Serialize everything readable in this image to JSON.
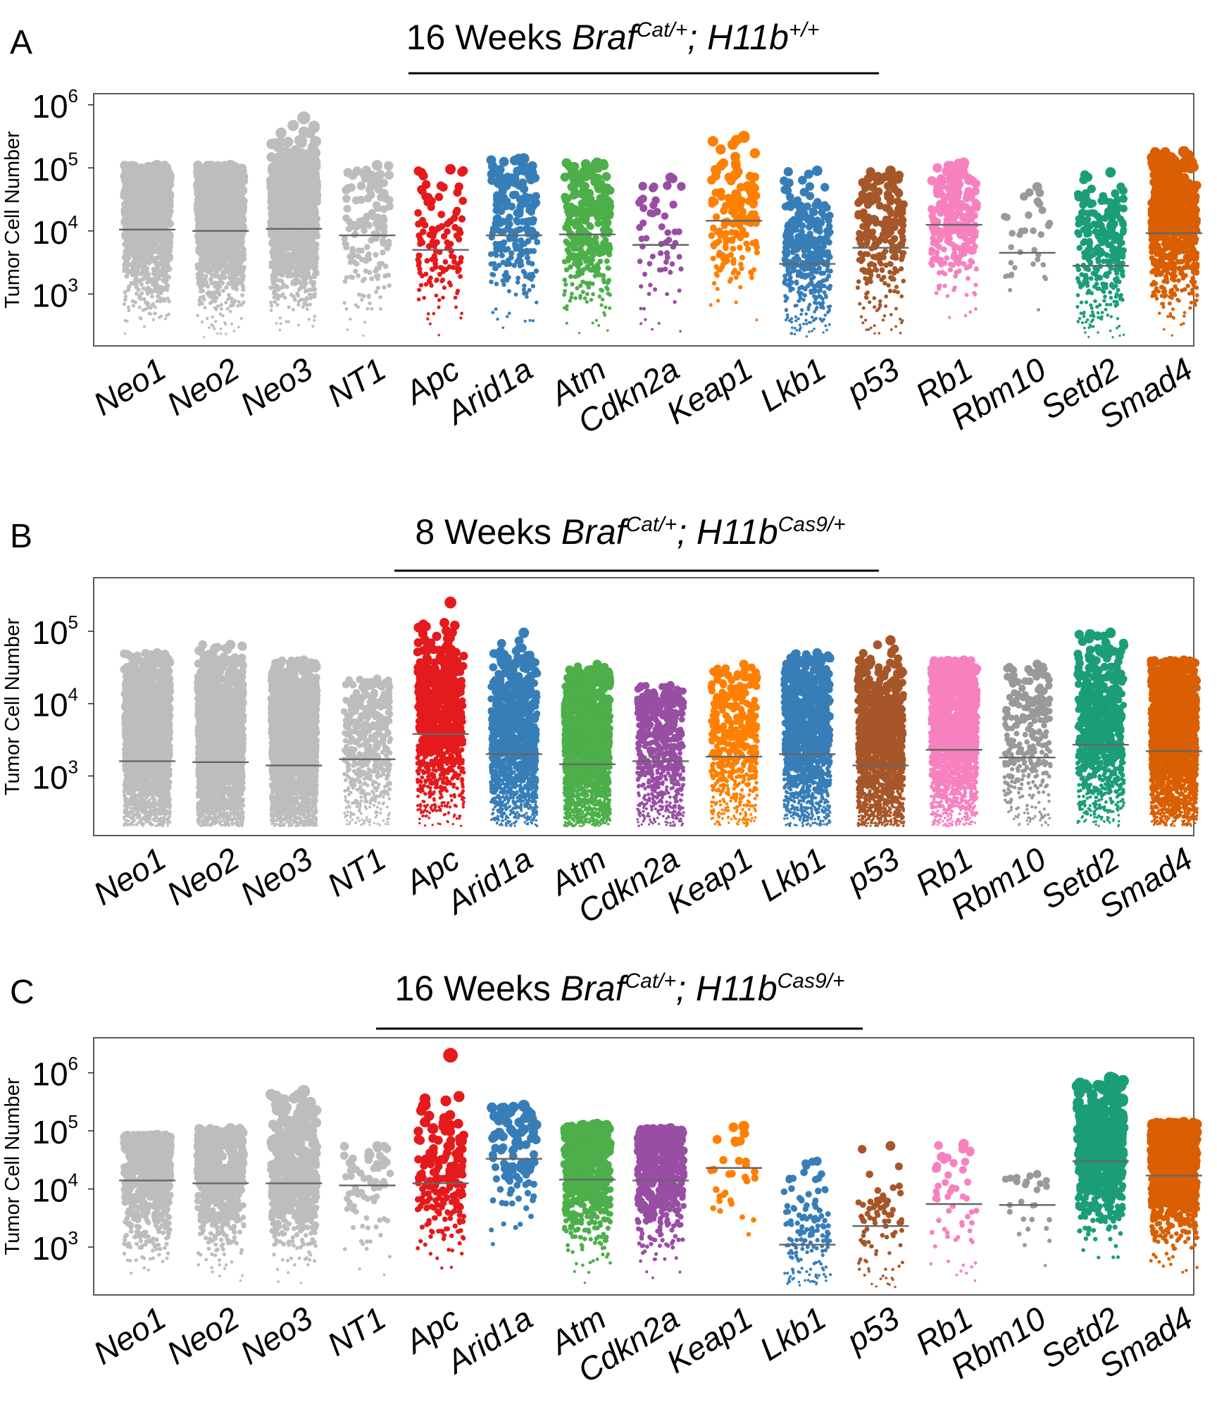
{
  "figure": {
    "panels": [
      {
        "letter": "A",
        "title_pre": "16 Weeks ",
        "title_braf": "Braf",
        "title_braf_sup": "Cat/+",
        "title_sep": "; ",
        "title_h11b": "H11b",
        "title_h11b_sup": "+/+"
      },
      {
        "letter": "B",
        "title_pre": "8 Weeks ",
        "title_braf": "Braf",
        "title_braf_sup": "Cat/+",
        "title_sep": "; ",
        "title_h11b": "H11b",
        "title_h11b_sup": "Cas9/+"
      },
      {
        "letter": "C",
        "title_pre": "16 Weeks ",
        "title_braf": "Braf",
        "title_braf_sup": "Cat/+",
        "title_sep": "; ",
        "title_h11b": "H11b",
        "title_h11b_sup": "Cas9/+"
      }
    ]
  },
  "chart_data": [
    {
      "type": "scatter",
      "title": "16 Weeks Braf Cat/+; H11b +/+",
      "ylabel": "Tumor Cell Number",
      "yscale": "log",
      "ylim": [
        150,
        1500000
      ],
      "yticks": [
        {
          "value": 1000,
          "base": "10",
          "exp": "3"
        },
        {
          "value": 10000,
          "base": "10",
          "exp": "4"
        },
        {
          "value": 100000,
          "base": "10",
          "exp": "5"
        },
        {
          "value": 1000000,
          "base": "10",
          "exp": "6"
        }
      ],
      "categories": [
        "Neo1",
        "Neo2",
        "Neo3",
        "NT1",
        "Apc",
        "Arid1a",
        "Atm",
        "Cdkn2a",
        "Keap1",
        "Lkb1",
        "p53",
        "Rb1",
        "Rbm10",
        "Setd2",
        "Smad4"
      ],
      "colors": [
        "#bdbdbd",
        "#bdbdbd",
        "#bdbdbd",
        "#bdbdbd",
        "#e41a1c",
        "#377eb8",
        "#4daf4a",
        "#984ea3",
        "#ff7f00",
        "#377eb8",
        "#a65628",
        "#f781bf",
        "#999999",
        "#1b9e77",
        "#d95f02"
      ],
      "medians": [
        10500,
        10000,
        10800,
        8500,
        5000,
        8500,
        8800,
        6000,
        14500,
        3000,
        5400,
        12500,
        4500,
        2800,
        9200
      ],
      "n_points": [
        900,
        1100,
        1200,
        160,
        130,
        210,
        330,
        60,
        160,
        420,
        260,
        260,
        35,
        320,
        620
      ],
      "max_values": [
        110000,
        110000,
        620000,
        110000,
        95000,
        140000,
        120000,
        70000,
        310000,
        90000,
        90000,
        120000,
        50000,
        85000,
        180000
      ],
      "grid": false,
      "legend": "none"
    },
    {
      "type": "scatter",
      "title": "8 Weeks Braf Cat/+; H11b Cas9/+",
      "ylabel": "Tumor Cell Number",
      "yscale": "log",
      "ylim": [
        150,
        550000
      ],
      "yticks": [
        {
          "value": 1000,
          "base": "10",
          "exp": "3"
        },
        {
          "value": 10000,
          "base": "10",
          "exp": "4"
        },
        {
          "value": 100000,
          "base": "10",
          "exp": "5"
        }
      ],
      "categories": [
        "Neo1",
        "Neo2",
        "Neo3",
        "NT1",
        "Apc",
        "Arid1a",
        "Atm",
        "Cdkn2a",
        "Keap1",
        "Lkb1",
        "p53",
        "Rb1",
        "Rbm10",
        "Setd2",
        "Smad4"
      ],
      "colors": [
        "#bdbdbd",
        "#bdbdbd",
        "#bdbdbd",
        "#bdbdbd",
        "#e41a1c",
        "#377eb8",
        "#4daf4a",
        "#984ea3",
        "#ff7f00",
        "#377eb8",
        "#a65628",
        "#f781bf",
        "#999999",
        "#1b9e77",
        "#d95f02"
      ],
      "medians": [
        1600,
        1550,
        1400,
        1700,
        3800,
        2000,
        1450,
        1600,
        1850,
        2000,
        1400,
        2300,
        1800,
        2700,
        2200
      ],
      "n_points": [
        2600,
        3000,
        2900,
        520,
        900,
        1300,
        2000,
        700,
        560,
        1300,
        1500,
        1500,
        320,
        850,
        2200
      ],
      "max_values": [
        50000,
        65000,
        40000,
        22000,
        250000,
        95000,
        35000,
        18000,
        35000,
        50000,
        75000,
        40000,
        35000,
        95000,
        40000
      ],
      "grid": false,
      "legend": "none"
    },
    {
      "type": "scatter",
      "title": "16 Weeks Braf Cat/+; H11b Cas9/+",
      "ylabel": "Tumor Cell Number",
      "yscale": "log",
      "ylim": [
        150,
        4000000
      ],
      "yticks": [
        {
          "value": 1000,
          "base": "10",
          "exp": "3"
        },
        {
          "value": 10000,
          "base": "10",
          "exp": "4"
        },
        {
          "value": 100000,
          "base": "10",
          "exp": "5"
        },
        {
          "value": 1000000,
          "base": "10",
          "exp": "6"
        }
      ],
      "categories": [
        "Neo1",
        "Neo2",
        "Neo3",
        "NT1",
        "Apc",
        "Arid1a",
        "Atm",
        "Cdkn2a",
        "Keap1",
        "Lkb1",
        "p53",
        "Rb1",
        "Rbm10",
        "Setd2",
        "Smad4"
      ],
      "colors": [
        "#bdbdbd",
        "#bdbdbd",
        "#bdbdbd",
        "#bdbdbd",
        "#e41a1c",
        "#377eb8",
        "#4daf4a",
        "#984ea3",
        "#ff7f00",
        "#377eb8",
        "#a65628",
        "#f781bf",
        "#999999",
        "#1b9e77",
        "#d95f02"
      ],
      "medians": [
        14000,
        12500,
        12500,
        11500,
        12500,
        33000,
        14500,
        14000,
        23000,
        1100,
        2300,
        5500,
        5300,
        30000,
        17000
      ],
      "n_points": [
        600,
        550,
        600,
        70,
        200,
        110,
        500,
        420,
        30,
        160,
        90,
        60,
        25,
        560,
        750
      ],
      "max_values": [
        85000,
        110000,
        480000,
        55000,
        2000000,
        270000,
        130000,
        110000,
        120000,
        30000,
        55000,
        60000,
        18000,
        800000,
        140000
      ],
      "grid": false,
      "legend": "none"
    }
  ]
}
